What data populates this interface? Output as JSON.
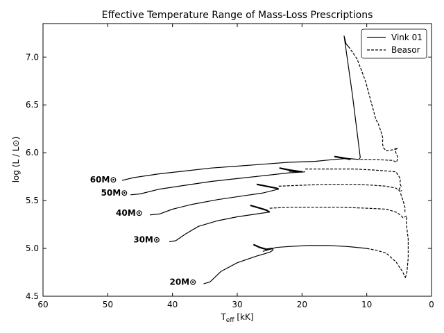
{
  "chart_data": {
    "type": "line",
    "title": "Effective Temperature Range of Mass-Loss Prescriptions",
    "xlabel_main": "T",
    "xlabel_sub": "eff",
    "xlabel_unit": " [kK]",
    "ylabel": "log (L / L⊙)",
    "xlim": [
      60,
      0
    ],
    "ylim": [
      4.5,
      7.35
    ],
    "x_ticks": [
      60,
      50,
      40,
      30,
      20,
      10,
      0
    ],
    "x_tick_labels": [
      "60",
      "50",
      "40",
      "30",
      "20",
      "10",
      "0"
    ],
    "y_ticks": [
      4.5,
      5.0,
      5.5,
      6.0,
      6.5,
      7.0
    ],
    "y_tick_labels": [
      "4.5",
      "5.0",
      "5.5",
      "6.0",
      "6.5",
      "7.0"
    ],
    "grid": false,
    "legend_position": "top-right",
    "legend": [
      {
        "label": "Vink 01",
        "style": "solid"
      },
      {
        "label": "Beasor",
        "style": "dashed"
      }
    ],
    "tracks": [
      {
        "mass_label": "60M⊙",
        "label_anchor": [
          48.6,
          5.72
        ],
        "vink": [
          [
            47.8,
            5.71
          ],
          [
            46,
            5.74
          ],
          [
            42,
            5.78
          ],
          [
            38,
            5.81
          ],
          [
            34,
            5.84
          ],
          [
            30,
            5.86
          ],
          [
            26,
            5.88
          ],
          [
            22,
            5.9
          ],
          [
            18,
            5.91
          ],
          [
            15,
            5.93
          ],
          [
            13,
            5.94
          ],
          [
            11.2,
            5.93
          ],
          [
            11,
            5.95
          ],
          [
            12.2,
            6.6
          ],
          [
            13.5,
            7.22
          ],
          [
            13.2,
            7.14
          ],
          [
            12.6,
            7.09
          ]
        ],
        "beasor": [
          [
            11,
            5.93
          ],
          [
            9,
            5.93
          ],
          [
            6,
            5.92
          ],
          [
            5.4,
            5.9
          ],
          [
            5.2,
            5.95
          ],
          [
            5.5,
            6.0
          ],
          [
            5.6,
            6.03
          ],
          [
            5.2,
            6.05
          ],
          [
            6,
            6.03
          ],
          [
            7,
            6.02
          ],
          [
            7.4,
            6.05
          ],
          [
            7.6,
            6.1
          ],
          [
            7.5,
            6.15
          ],
          [
            7.8,
            6.22
          ],
          [
            8.2,
            6.3
          ],
          [
            8.6,
            6.35
          ],
          [
            9.2,
            6.5
          ],
          [
            10.2,
            6.75
          ],
          [
            11.5,
            6.98
          ],
          [
            12.6,
            7.09
          ]
        ],
        "loop": [
          [
            15,
            5.96
          ],
          [
            14,
            5.95
          ],
          [
            13.2,
            5.94
          ],
          [
            12.5,
            5.93
          ]
        ]
      },
      {
        "mass_label": "50M⊙",
        "label_anchor": [
          46.9,
          5.58
        ],
        "vink": [
          [
            46.5,
            5.56
          ],
          [
            45,
            5.57
          ],
          [
            42,
            5.62
          ],
          [
            38,
            5.66
          ],
          [
            34,
            5.7
          ],
          [
            30,
            5.73
          ],
          [
            26,
            5.76
          ],
          [
            22,
            5.79
          ],
          [
            19.5,
            5.8
          ]
        ],
        "beasor": [
          [
            19.5,
            5.83
          ],
          [
            16,
            5.83
          ],
          [
            12,
            5.83
          ],
          [
            9,
            5.82
          ],
          [
            7,
            5.81
          ],
          [
            5.5,
            5.8
          ],
          [
            5,
            5.75
          ],
          [
            4.8,
            5.72
          ],
          [
            4.9,
            5.68
          ],
          [
            4.7,
            5.65
          ],
          [
            5,
            5.62
          ],
          [
            4.6,
            5.6
          ]
        ],
        "loop": [
          [
            23.5,
            5.84
          ],
          [
            22,
            5.82
          ],
          [
            20,
            5.8
          ],
          [
            22,
            5.81
          ]
        ]
      },
      {
        "mass_label": "40M⊙",
        "label_anchor": [
          44.6,
          5.37
        ],
        "vink": [
          [
            43.5,
            5.35
          ],
          [
            42,
            5.36
          ],
          [
            40,
            5.41
          ],
          [
            37,
            5.46
          ],
          [
            33,
            5.51
          ],
          [
            29,
            5.55
          ],
          [
            26,
            5.58
          ],
          [
            23.6,
            5.62
          ]
        ],
        "beasor": [
          [
            23.6,
            5.65
          ],
          [
            20,
            5.66
          ],
          [
            16,
            5.67
          ],
          [
            12,
            5.67
          ],
          [
            9,
            5.66
          ],
          [
            7,
            5.65
          ],
          [
            5.5,
            5.63
          ],
          [
            4.9,
            5.6
          ],
          [
            4.7,
            5.56
          ],
          [
            4.4,
            5.5
          ],
          [
            4.1,
            5.43
          ],
          [
            4.1,
            5.38
          ]
        ],
        "loop": [
          [
            27,
            5.67
          ],
          [
            25.5,
            5.65
          ],
          [
            24,
            5.63
          ],
          [
            23.6,
            5.62
          ]
        ]
      },
      {
        "mass_label": "30M⊙",
        "label_anchor": [
          41.9,
          5.09
        ],
        "vink": [
          [
            40.5,
            5.07
          ],
          [
            39.5,
            5.08
          ],
          [
            38,
            5.15
          ],
          [
            36,
            5.23
          ],
          [
            33,
            5.29
          ],
          [
            30,
            5.33
          ],
          [
            27,
            5.36
          ],
          [
            25,
            5.38
          ]
        ],
        "beasor": [
          [
            25,
            5.42
          ],
          [
            22,
            5.43
          ],
          [
            18,
            5.43
          ],
          [
            14,
            5.43
          ],
          [
            10,
            5.42
          ],
          [
            7,
            5.41
          ],
          [
            5.5,
            5.38
          ],
          [
            4.8,
            5.35
          ],
          [
            4.4,
            5.32
          ],
          [
            3.8,
            5.34
          ],
          [
            3.9,
            5.26
          ],
          [
            3.6,
            5.1
          ],
          [
            3.6,
            4.9
          ],
          [
            3.8,
            4.75
          ],
          [
            4,
            4.7
          ]
        ],
        "loop": [
          [
            28,
            5.45
          ],
          [
            26.5,
            5.42
          ],
          [
            25.5,
            5.4
          ],
          [
            25,
            5.38
          ]
        ]
      },
      {
        "mass_label": "20M⊙",
        "label_anchor": [
          36.3,
          4.65
        ],
        "vink": [
          [
            35.2,
            4.63
          ],
          [
            34.2,
            4.65
          ],
          [
            32.5,
            4.76
          ],
          [
            30,
            4.85
          ],
          [
            27,
            4.92
          ],
          [
            25,
            4.96
          ],
          [
            24.5,
            4.98
          ],
          [
            24.5,
            5.0
          ],
          [
            26,
            4.97
          ],
          [
            24,
            5.01
          ],
          [
            22,
            5.02
          ],
          [
            19,
            5.03
          ],
          [
            16,
            5.03
          ],
          [
            13,
            5.02
          ],
          [
            10,
            5.0
          ]
        ],
        "beasor": [
          [
            10,
            5.0
          ],
          [
            8.5,
            4.98
          ],
          [
            7,
            4.95
          ],
          [
            5.5,
            4.86
          ],
          [
            4.5,
            4.76
          ],
          [
            4,
            4.69
          ]
        ],
        "loop": [
          [
            27.5,
            5.04
          ],
          [
            26.5,
            5.01
          ],
          [
            25.5,
            4.99
          ],
          [
            24.5,
            5.0
          ]
        ]
      }
    ]
  }
}
